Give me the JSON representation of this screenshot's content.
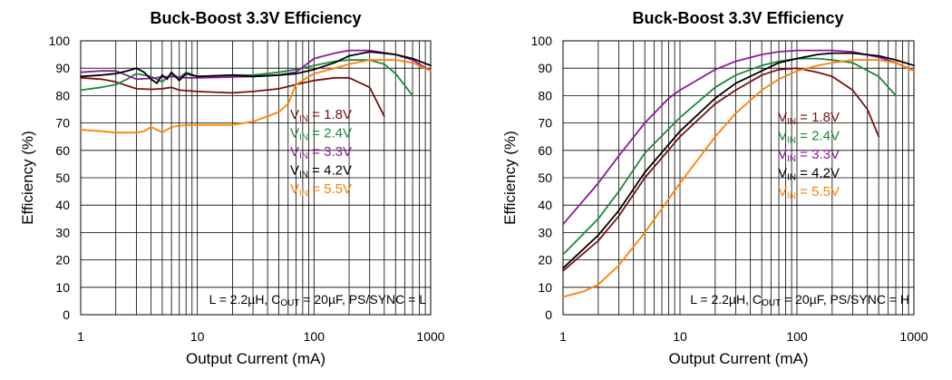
{
  "chart_data": [
    {
      "type": "line",
      "title": "Buck-Boost 3.3V Efficiency",
      "xlabel": "Output Current (mA)",
      "ylabel": "Efficiency (%)",
      "xscale": "log",
      "xlim": [
        1,
        1000
      ],
      "ylim": [
        0,
        100
      ],
      "xticks": [
        "1",
        "10",
        "100",
        "1000"
      ],
      "yticks": [
        "0",
        "10",
        "20",
        "30",
        "40",
        "50",
        "60",
        "70",
        "80",
        "90",
        "100"
      ],
      "grid": true,
      "legend_position": "right-center",
      "annotation": {
        "pre": "L = 2.2µH, C",
        "sub": "OUT",
        "post": " = 20µF, PS/SYNC = L"
      },
      "series": [
        {
          "name": "VIN = 1.8V",
          "label_main": "V",
          "label_sub": "IN",
          "label_rest": " = 1.8V",
          "color": "#7a1010",
          "x": [
            1,
            1.5,
            2,
            3,
            4,
            5,
            6,
            7,
            10,
            20,
            30,
            50,
            70,
            100,
            150,
            200,
            300,
            400
          ],
          "y": [
            86.5,
            86,
            85,
            82.5,
            82.3,
            82.5,
            83,
            82,
            81.5,
            81,
            81.5,
            82.5,
            84,
            85.5,
            86.5,
            86.5,
            83,
            72.5
          ]
        },
        {
          "name": "VIN = 2.4V",
          "label_main": "V",
          "label_sub": "IN",
          "label_rest": " = 2.4V",
          "color": "#1a8a3a",
          "x": [
            1,
            1.5,
            2,
            2.5,
            3,
            4,
            5,
            6,
            7,
            8,
            10,
            20,
            30,
            50,
            70,
            100,
            150,
            200,
            300,
            400,
            500,
            700
          ],
          "y": [
            82,
            83,
            84,
            86,
            88,
            87,
            85,
            88,
            86.5,
            88.5,
            87,
            87.5,
            87.5,
            88.5,
            89.5,
            91,
            92.5,
            93,
            93,
            91.5,
            88,
            80
          ]
        },
        {
          "name": "VIN = 3.3V",
          "label_main": "V",
          "label_sub": "IN",
          "label_rest": " = 3.3V",
          "color": "#8a1a9a",
          "x": [
            1,
            1.5,
            2,
            3,
            4,
            5,
            6,
            8,
            10,
            20,
            30,
            50,
            70,
            100,
            150,
            200,
            300,
            500,
            700,
            1000
          ],
          "y": [
            88.5,
            89,
            89,
            86,
            86.3,
            86.8,
            87,
            86.5,
            86.5,
            86.8,
            87,
            87.5,
            88.5,
            93.5,
            95.5,
            96.5,
            96.5,
            95,
            93,
            89
          ]
        },
        {
          "name": "VIN = 4.2V",
          "label_main": "V",
          "label_sub": "IN",
          "label_rest": " = 4.2V",
          "color": "#000000",
          "x": [
            1,
            1.5,
            2,
            2.5,
            3,
            3.5,
            4,
            4.5,
            5,
            5.5,
            6,
            7,
            8,
            10,
            20,
            30,
            50,
            70,
            100,
            150,
            200,
            300,
            500,
            700,
            1000
          ],
          "y": [
            87,
            87.5,
            88,
            89,
            90,
            88.5,
            86,
            84.5,
            87.5,
            86,
            88.5,
            85.5,
            88,
            87,
            87.5,
            87,
            87.5,
            88,
            89.5,
            92,
            94.5,
            96,
            95,
            93.5,
            91
          ]
        },
        {
          "name": "VIN = 5.5V",
          "label_main": "V",
          "label_sub": "IN",
          "label_rest": " = 5.5V",
          "color": "#ff8000",
          "x": [
            1,
            1.5,
            2,
            3,
            3.5,
            4,
            4.5,
            5,
            6,
            7,
            8,
            10,
            20,
            30,
            50,
            60,
            70,
            100,
            150,
            200,
            300,
            500,
            700,
            1000
          ],
          "y": [
            67.5,
            67,
            66.5,
            66.5,
            67,
            68.5,
            67.5,
            66.5,
            68.5,
            69,
            69.2,
            69.3,
            69.3,
            70.5,
            74,
            77,
            84,
            88,
            90,
            91.5,
            93,
            93,
            92,
            89
          ]
        }
      ]
    },
    {
      "type": "line",
      "title": "Buck-Boost 3.3V Efficiency",
      "xlabel": "Output Current (mA)",
      "ylabel": "Efficiency (%)",
      "xscale": "log",
      "xlim": [
        1,
        1000
      ],
      "ylim": [
        0,
        100
      ],
      "xticks": [
        "1",
        "10",
        "100",
        "1000"
      ],
      "yticks": [
        "0",
        "10",
        "20",
        "30",
        "40",
        "50",
        "60",
        "70",
        "80",
        "90",
        "100"
      ],
      "grid": true,
      "legend_position": "right-center",
      "annotation": {
        "pre": "L = 2.2µH, C",
        "sub": "OUT",
        "post": " = 20µF, PS/SYNC = H"
      },
      "series": [
        {
          "name": "VIN = 1.8V",
          "label_main": "V",
          "label_sub": "IN",
          "label_rest": " = 1.8V",
          "color": "#7a1010",
          "x": [
            1,
            2,
            3,
            5,
            10,
            20,
            30,
            50,
            70,
            100,
            150,
            200,
            300,
            400,
            500
          ],
          "y": [
            16,
            27,
            36,
            50,
            65,
            77,
            82,
            87.5,
            89.5,
            90,
            88.5,
            87,
            82,
            75,
            65
          ]
        },
        {
          "name": "VIN = 2.4V",
          "label_main": "V",
          "label_sub": "IN",
          "label_rest": " = 2.4V",
          "color": "#1a8a3a",
          "x": [
            1,
            2,
            3,
            5,
            10,
            20,
            30,
            50,
            70,
            100,
            150,
            200,
            300,
            500,
            700
          ],
          "y": [
            22,
            35,
            45,
            59,
            72,
            83,
            87.5,
            91,
            92.5,
            93.5,
            93.5,
            93,
            92,
            87,
            80
          ]
        },
        {
          "name": "VIN = 3.3V",
          "label_main": "V",
          "label_sub": "IN",
          "label_rest": " = 3.3V",
          "color": "#8a1a9a",
          "x": [
            1,
            2,
            3,
            5,
            8,
            10,
            20,
            30,
            50,
            70,
            100,
            200,
            300,
            500,
            700,
            1000
          ],
          "y": [
            33,
            48,
            58,
            70,
            79,
            82,
            89.5,
            92.5,
            95,
            96,
            96.5,
            96.5,
            96,
            94,
            92,
            89
          ]
        },
        {
          "name": "VIN = 4.2V",
          "label_main": "V",
          "label_sub": "IN",
          "label_rest": " = 4.2V",
          "color": "#000000",
          "x": [
            1,
            2,
            3,
            5,
            10,
            20,
            30,
            50,
            70,
            100,
            150,
            200,
            300,
            500,
            700,
            1000
          ],
          "y": [
            17,
            29,
            38,
            52,
            67,
            79,
            84.5,
            89,
            92,
            93.5,
            95,
            95.5,
            95.5,
            94.5,
            93,
            91
          ]
        },
        {
          "name": "VIN = 5.5V",
          "label_main": "V",
          "label_sub": "IN",
          "label_rest": " = 5.5V",
          "color": "#ff8000",
          "x": [
            1,
            1.5,
            2,
            3,
            5,
            10,
            20,
            30,
            50,
            70,
            100,
            150,
            200,
            300,
            500,
            700,
            1000
          ],
          "y": [
            6.5,
            8.5,
            11,
            18,
            30,
            48,
            65,
            73.5,
            82,
            86,
            89,
            91,
            92,
            93,
            93,
            92,
            89
          ]
        }
      ]
    }
  ]
}
